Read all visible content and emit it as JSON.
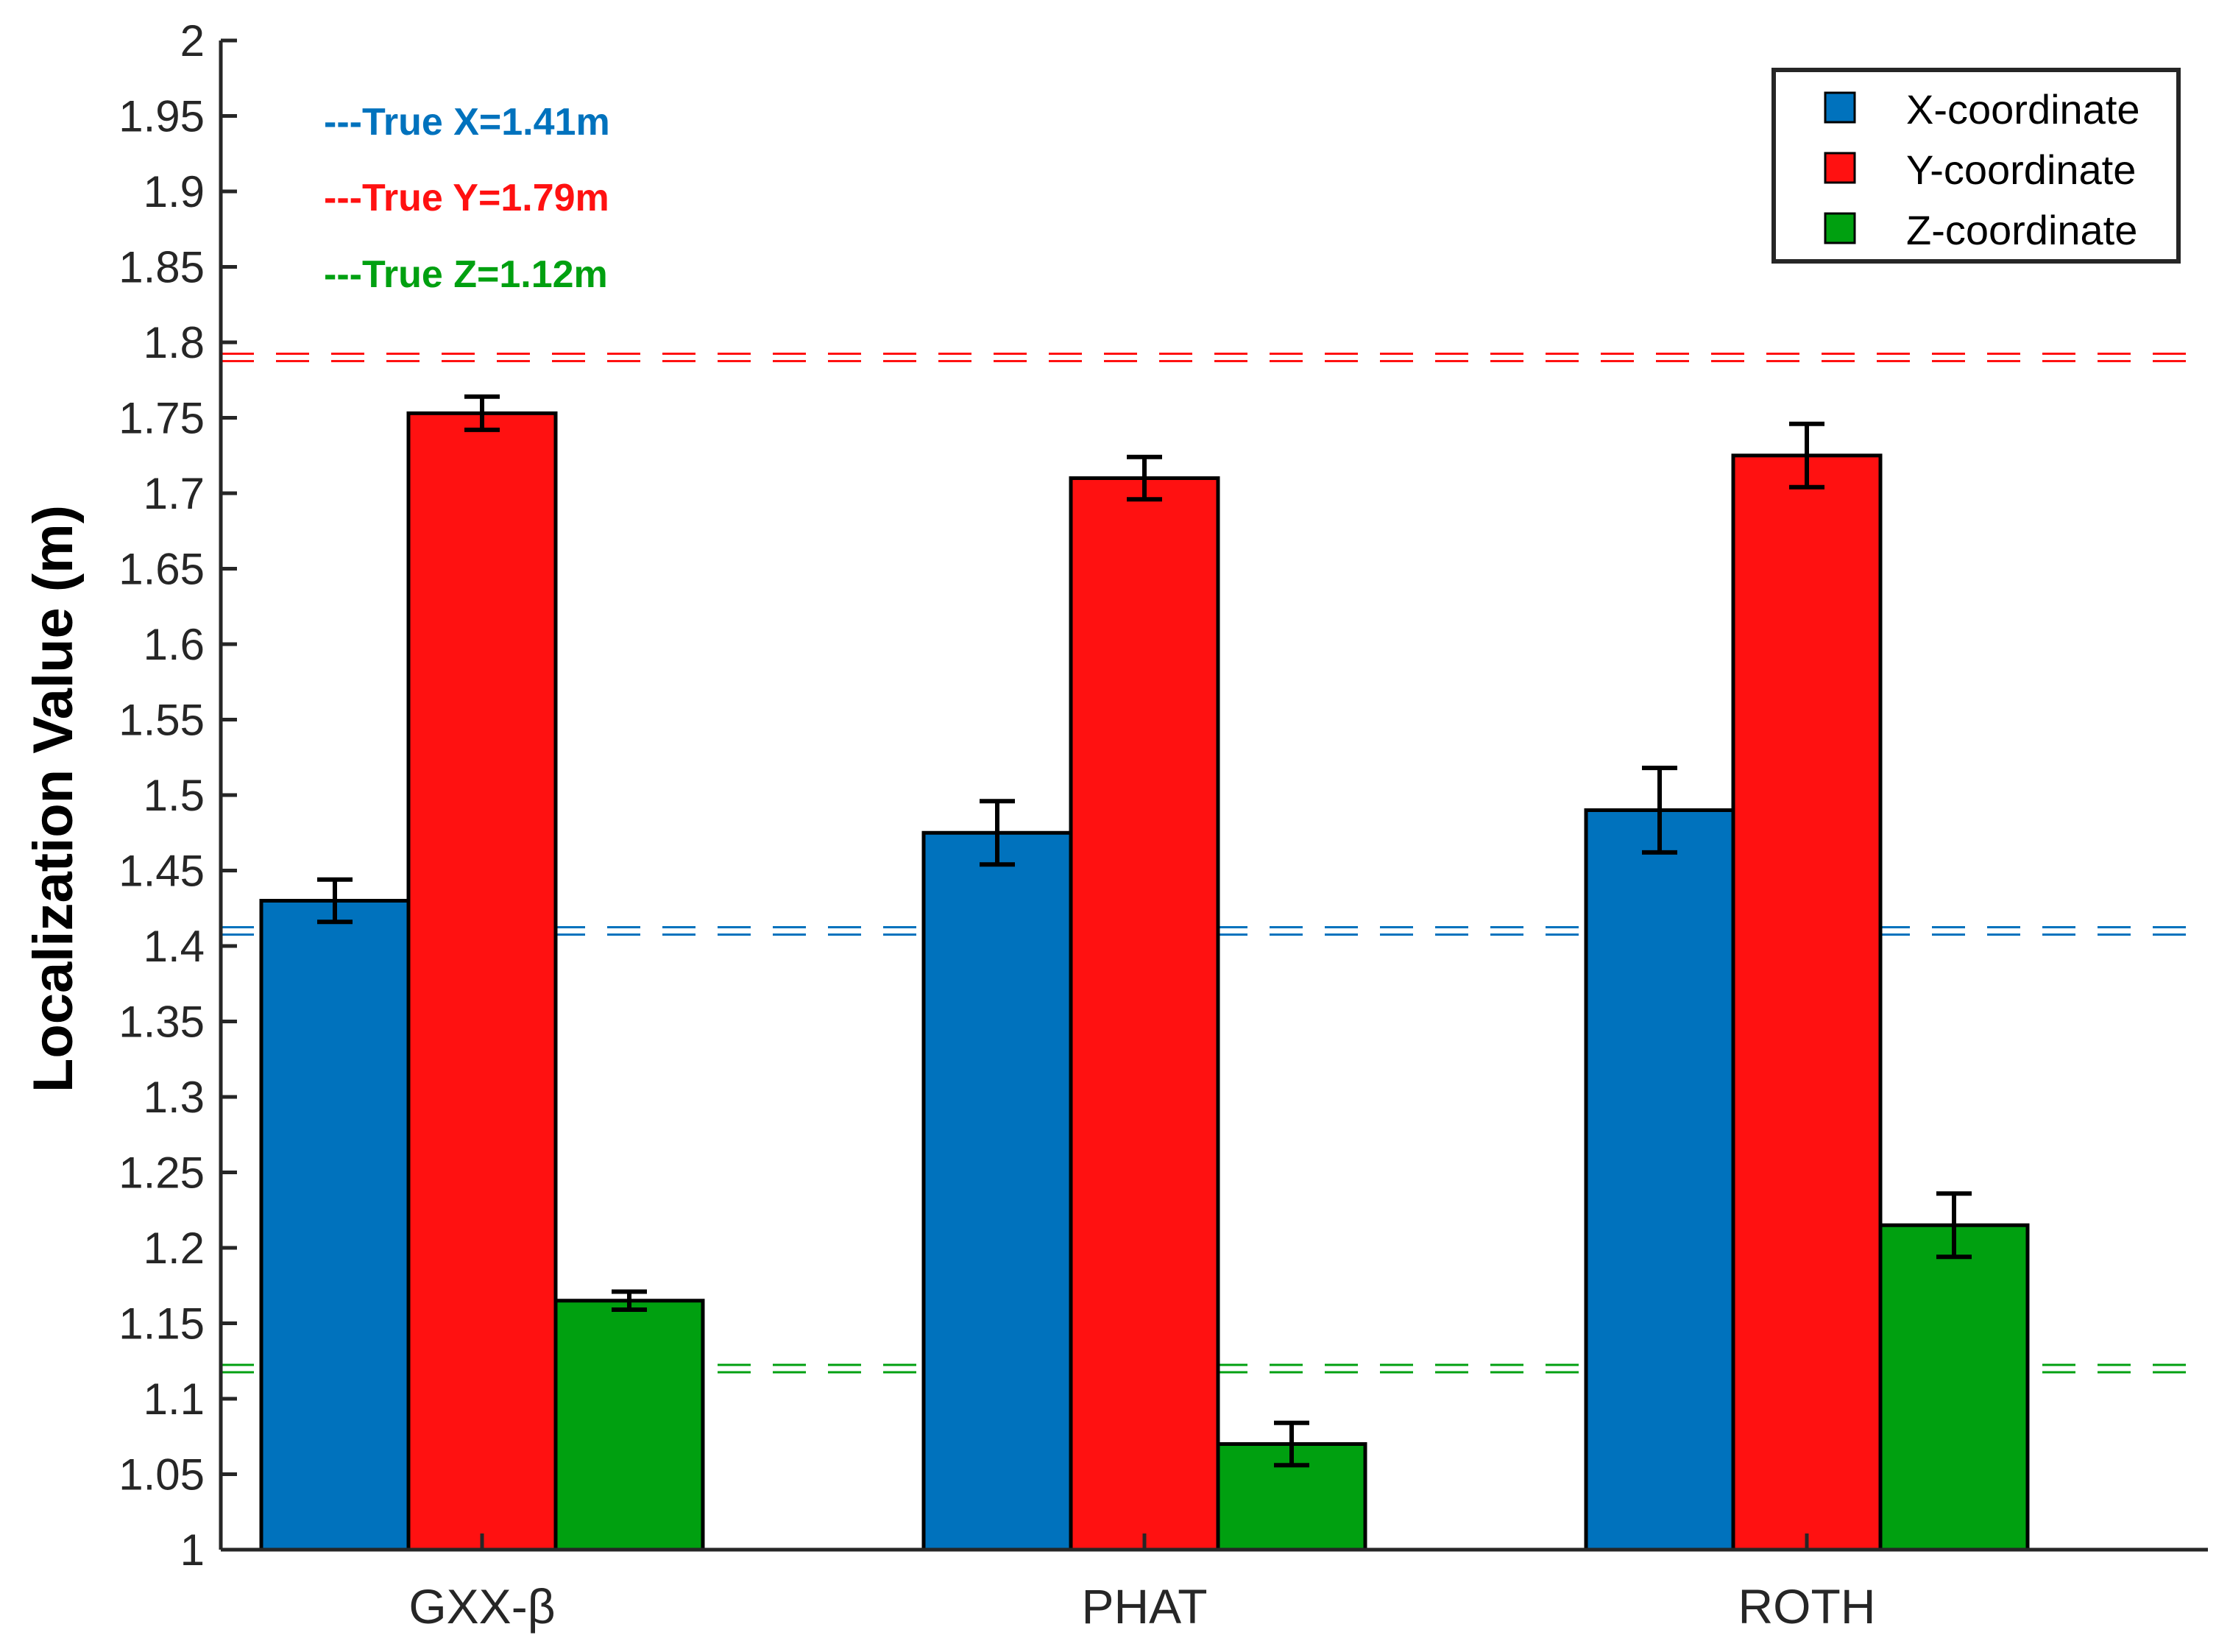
{
  "chart_data": {
    "type": "bar",
    "title": "",
    "xlabel": "",
    "ylabel": "Localization Value (m)",
    "ylim": [
      1,
      2
    ],
    "ytick_step": 0.05,
    "yticks": [
      "1",
      "1.05",
      "1.1",
      "1.15",
      "1.2",
      "1.25",
      "1.3",
      "1.35",
      "1.4",
      "1.45",
      "1.5",
      "1.55",
      "1.6",
      "1.65",
      "1.7",
      "1.75",
      "1.8",
      "1.85",
      "1.9",
      "1.95",
      "2"
    ],
    "categories": [
      "GXX-β",
      "PHAT",
      "ROTH"
    ],
    "series": [
      {
        "name": "X-coordinate",
        "color": "#0072BD",
        "values": [
          1.43,
          1.475,
          1.49
        ],
        "errors": [
          0.014,
          0.021,
          0.028
        ]
      },
      {
        "name": "Y-coordinate",
        "color": "#FF1111",
        "values": [
          1.753,
          1.71,
          1.725
        ],
        "errors": [
          0.011,
          0.014,
          0.021
        ]
      },
      {
        "name": "Z-coordinate",
        "color": "#00A010",
        "values": [
          1.165,
          1.07,
          1.215
        ],
        "errors": [
          0.006,
          0.014,
          0.021
        ]
      }
    ],
    "reference_lines": [
      {
        "label": "---True X=1.41m",
        "value": 1.41,
        "color": "#0072BD"
      },
      {
        "label": "---True Y=1.79m",
        "value": 1.79,
        "color": "#FF1111"
      },
      {
        "label": "---True Z=1.12m",
        "value": 1.12,
        "color": "#00A010"
      }
    ],
    "legend_position": "top-right",
    "grid": false
  }
}
